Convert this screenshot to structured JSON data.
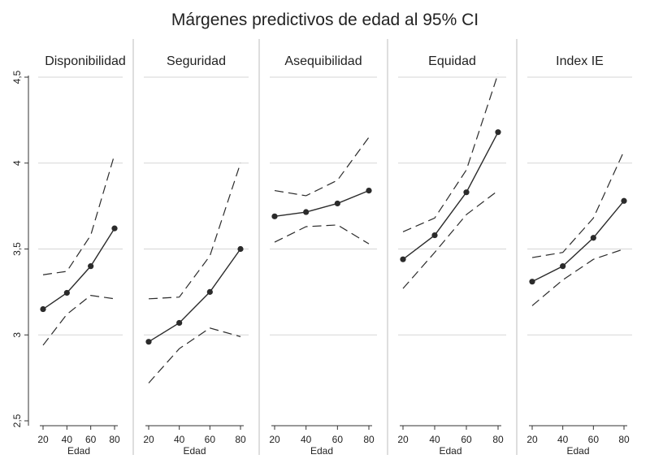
{
  "chart_data": {
    "type": "line",
    "title": "Márgenes predictivos de edad al 95% CI",
    "xlabel": "Edad",
    "ylabel": "",
    "x": [
      20,
      40,
      60,
      80
    ],
    "x_ticks": [
      20,
      40,
      60,
      80
    ],
    "ylim": [
      2.5,
      4.5
    ],
    "y_ticks": [
      2.5,
      3,
      3.5,
      4,
      4.5
    ],
    "y_tick_labels": [
      "2,5",
      "3",
      "3,5",
      "4",
      "4,5"
    ],
    "grid": true,
    "panels": [
      {
        "name": "Disponibilidad",
        "estimate": [
          3.15,
          3.245,
          3.4,
          3.62
        ],
        "upper": [
          3.35,
          3.37,
          3.58,
          4.05
        ],
        "lower": [
          2.94,
          3.12,
          3.23,
          3.21
        ]
      },
      {
        "name": "Seguridad",
        "estimate": [
          2.96,
          3.07,
          3.25,
          3.5
        ],
        "upper": [
          3.21,
          3.22,
          3.46,
          4.0
        ],
        "lower": [
          2.72,
          2.92,
          3.04,
          2.99
        ]
      },
      {
        "name": "Asequibilidad",
        "estimate": [
          3.69,
          3.715,
          3.765,
          3.84
        ],
        "upper": [
          3.84,
          3.81,
          3.9,
          4.15
        ],
        "lower": [
          3.54,
          3.63,
          3.64,
          3.53
        ]
      },
      {
        "name": "Equidad",
        "estimate": [
          3.44,
          3.58,
          3.83,
          4.18
        ],
        "upper": [
          3.6,
          3.68,
          3.96,
          4.52
        ],
        "lower": [
          3.27,
          3.48,
          3.7,
          3.84
        ]
      },
      {
        "name": "Index IE",
        "estimate": [
          3.31,
          3.4,
          3.565,
          3.78
        ],
        "upper": [
          3.45,
          3.48,
          3.68,
          4.07
        ],
        "lower": [
          3.17,
          3.32,
          3.44,
          3.5
        ]
      }
    ]
  }
}
